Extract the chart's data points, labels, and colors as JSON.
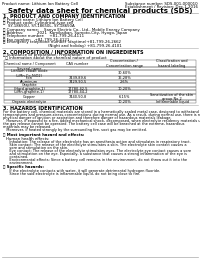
{
  "title": "Safety data sheet for chemical products (SDS)",
  "header_left": "Product name: Lithium Ion Battery Cell",
  "header_right_l1": "Substance number: SDS-001-000010",
  "header_right_l2": "Establishment / Revision: Dec.1.2016",
  "s1_title": "1. PRODUCT AND COMPANY IDENTIFICATION",
  "s1_lines": [
    "・ Product name: Lithium Ion Battery Cell",
    "・ Product code: Cylindrical-type cell",
    "    SY-18650U, SY-18650L, SY-18650A",
    "・ Company name:    Sanyo Electric Co., Ltd., Mobile Energy Company",
    "・ Address:           2021  Kamikaikan, Sumoto-City, Hyogo, Japan",
    "・ Telephone number:    +81-799-26-4111",
    "・ Fax number:   +81-799-26-4121",
    "・ Emergency telephone number (daytime)+81-799-26-2662",
    "                                    (Night and holiday) +81-799-26-4101"
  ],
  "s2_title": "2. COMPOSITION / INFORMATION ON INGREDIENTS",
  "s2_prep": "・ Substance or preparation: Preparation",
  "s2_info": "  ・ Information about the chemical nature of product",
  "tbl_h": [
    "Chemical name / Component",
    "CAS number",
    "Concentration /\nConcentration range",
    "Classification and\nhazard labeling"
  ],
  "tbl_rows": [
    [
      "Several name",
      "",
      "",
      ""
    ],
    [
      "Lithium cobalt oxide\n(LiMn-Co-NiO2)",
      "",
      "30-60%",
      ""
    ],
    [
      "Iron",
      "7439-89-6",
      "16-28%",
      ""
    ],
    [
      "Aluminum",
      "7429-90-5",
      "2.6%",
      ""
    ],
    [
      "Graphite",
      "",
      "",
      ""
    ],
    [
      "(Hard graphite-1)",
      "17780-42-5",
      "10-20%",
      ""
    ],
    [
      "(LiMn-graphite-1)",
      "17780-44-2",
      "",
      ""
    ],
    [
      "Copper",
      "7440-50-8",
      "6-15%",
      "Sensitization of the skin\ngroup No.2"
    ],
    [
      "Organic electrolyte",
      "",
      "10-20%",
      "Inflammable liquid"
    ]
  ],
  "tbl_row_h": [
    3.5,
    6,
    3.5,
    3.5,
    3.5,
    3.5,
    3.5,
    6,
    3.5
  ],
  "tbl_cols": [
    4,
    55,
    100,
    148,
    196
  ],
  "s3_title": "3. HAZARDS IDENTIFICATION",
  "s3_para": [
    "For the battery cell, chemical materials are stored in a hermetically sealed metal case, designed to withstand",
    "temperatures and pressure-stress-concentrations during normal use. As a result, during normal use, there is no",
    "physical danger of ignition or aspiration and therefore danger of hazardous materials leakage.",
    "   However, if exposed to a fire, added mechanical shock, decomposed, when electrolyte residency materials use,",
    "the gas release cannot be operated. The battery cell case will be breached at the extreme, hazardous",
    "materials may be released.",
    "   Moreover, if heated strongly by the surrounding fire, soot gas may be emitted."
  ],
  "s3_b1": "・ Most important hazard and effects:",
  "s3_human": "Human health effects:",
  "s3_human_lines": [
    "   Inhalation: The release of the electrolyte has an anesthesia action and stimulates in respiratory tract.",
    "   Skin contact: The release of the electrolyte stimulates a skin. The electrolyte skin contact causes a",
    "   sore and stimulation on the skin.",
    "   Eye contact: The release of the electrolyte stimulates eyes. The electrolyte eye contact causes a sore",
    "   and stimulation on the eye. Especially, a substance that causes a strong inflammation of the eye is",
    "   contained.",
    "   Environmental effects: Since a battery cell remains in the environment, do not throw out it into the",
    "   environment."
  ],
  "s3_b2": "・ Specific hazards:",
  "s3_spec_lines": [
    "   If the electrolyte contacts with water, it will generate detrimental hydrogen fluoride.",
    "   Since the said electrolyte is inflammable liquid, do not bring close to fire."
  ],
  "bg": "#ffffff",
  "tc": "#000000",
  "lc": "#555555",
  "fs_header": 2.8,
  "fs_title": 5.0,
  "fs_s_title": 3.5,
  "fs_body": 2.8,
  "fs_table": 2.5,
  "lh_body": 3.2,
  "lh_table": 3.3
}
